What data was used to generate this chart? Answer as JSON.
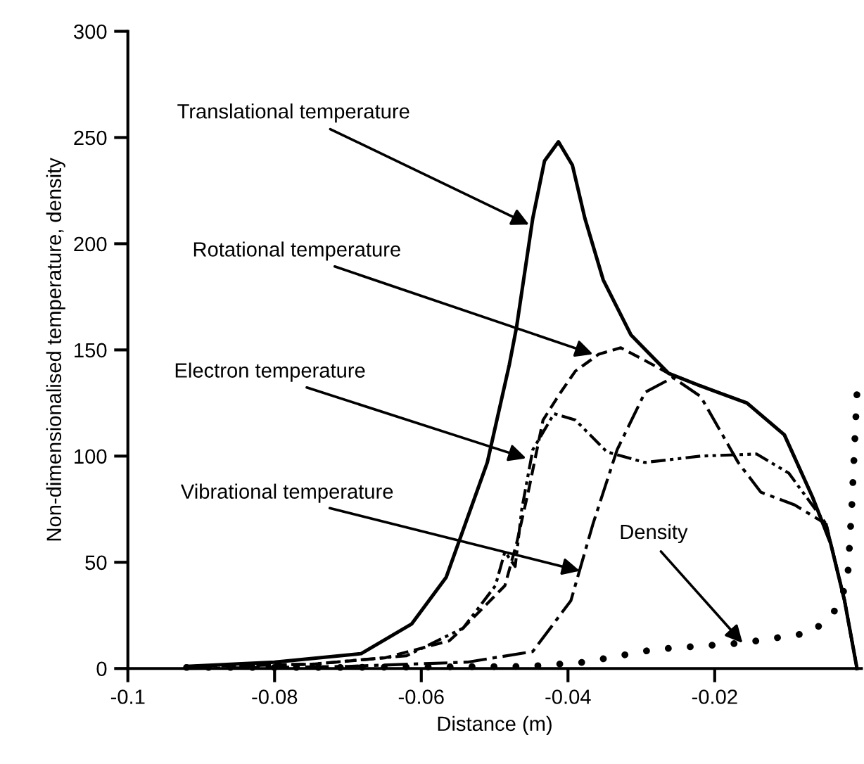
{
  "chart_data": {
    "type": "line",
    "xlabel": "Distance (m)",
    "ylabel": "Non-dimensionalised temperature, density",
    "xlim": [
      -0.1,
      0
    ],
    "xticks": [
      -0.1,
      -0.08,
      -0.06,
      -0.04,
      -0.02
    ],
    "ylim": [
      0,
      300
    ],
    "yticks": [
      0,
      50,
      100,
      150,
      200,
      250,
      300
    ],
    "grid": false,
    "legend": false,
    "series": [
      {
        "color": "#000000",
        "line_style": "solid",
        "x": [
          -0.092,
          -0.08,
          -0.0682,
          -0.0613,
          -0.0566,
          -0.051,
          -0.048,
          -0.047,
          -0.0448,
          -0.0432,
          -0.0413,
          -0.0394,
          -0.0377,
          -0.0352,
          -0.0314,
          -0.0263,
          -0.0219,
          -0.0156,
          -0.0105,
          -0.0067,
          -0.0042,
          -0.0023,
          -0.0006
        ],
        "values": [
          1,
          3,
          7,
          21,
          43,
          97,
          143,
          161,
          212,
          239,
          248,
          237,
          212,
          183,
          157,
          139,
          133,
          125,
          110,
          81,
          59,
          32,
          0
        ]
      },
      {
        "color": "#000000",
        "line_style": "dashed",
        "x": [
          -0.092,
          -0.075,
          -0.065,
          -0.0562,
          -0.0543,
          -0.0486,
          -0.047,
          -0.0453,
          -0.0434,
          -0.041,
          -0.039,
          -0.0358,
          -0.0328,
          -0.0295,
          -0.0263,
          -0.0219,
          -0.0156,
          -0.0105,
          -0.0067,
          -0.0042,
          -0.0023,
          -0.0006
        ],
        "values": [
          1,
          2,
          5,
          13,
          19,
          39,
          59,
          85,
          117,
          130,
          140,
          148,
          151,
          145,
          139,
          133,
          125,
          110,
          81,
          59,
          32,
          0
        ]
      },
      {
        "color": "#000000",
        "line_style": "dashdotdot",
        "x": [
          -0.092,
          -0.075,
          -0.062,
          -0.0543,
          -0.0499,
          -0.0486,
          -0.0472,
          -0.0463,
          -0.0448,
          -0.0419,
          -0.039,
          -0.0347,
          -0.0295,
          -0.0219,
          -0.0143,
          -0.0099,
          -0.0048,
          -0.0023,
          -0.0006
        ],
        "values": [
          1,
          2,
          6,
          19,
          39,
          55,
          48,
          75,
          103,
          120,
          117,
          102,
          97,
          100,
          101,
          92,
          68,
          32,
          0
        ]
      },
      {
        "color": "#000000",
        "line_style": "dashdot",
        "x": [
          -0.092,
          -0.07,
          -0.0537,
          -0.0448,
          -0.0396,
          -0.0366,
          -0.0333,
          -0.0295,
          -0.0257,
          -0.0219,
          -0.0168,
          -0.0137,
          -0.0091,
          -0.0048,
          -0.0023,
          -0.0006
        ],
        "values": [
          0,
          1,
          3,
          8,
          32,
          68,
          103,
          130,
          137,
          128,
          97,
          83,
          77,
          68,
          32,
          0
        ]
      },
      {
        "color": "#000000",
        "line_style": "dotted",
        "x": [
          -0.092,
          -0.07,
          -0.0453,
          -0.0377,
          -0.0282,
          -0.0162,
          -0.0067,
          -0.0034,
          -0.0019,
          -0.0013,
          -0.0006
        ],
        "values": [
          0.5,
          0.5,
          1,
          3,
          9,
          12,
          17,
          28,
          41,
          77,
          130
        ]
      }
    ],
    "annotations": [
      {
        "text": "Translational temperature",
        "x": -0.0453,
        "y": 209
      },
      {
        "text": "Rotational temperature",
        "x": -0.0366,
        "y": 148
      },
      {
        "text": "Electron temperature",
        "x": -0.0457,
        "y": 99
      },
      {
        "text": "Vibrational temperature",
        "x": -0.0384,
        "y": 46
      },
      {
        "text": "Density",
        "x": -0.0162,
        "y": 12
      }
    ]
  }
}
